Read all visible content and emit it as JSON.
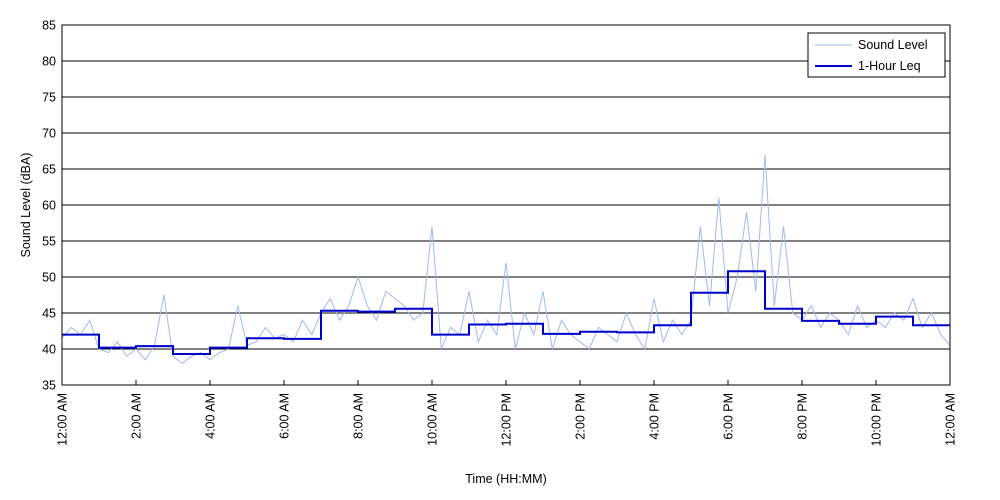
{
  "chart_data": {
    "type": "line",
    "title": "",
    "xlabel": "Time (HH:MM)",
    "ylabel": "Sound Level (dBA)",
    "xlim": [
      0,
      24
    ],
    "ylim": [
      35,
      85
    ],
    "y_ticks": [
      35,
      40,
      45,
      50,
      55,
      60,
      65,
      70,
      75,
      80,
      85
    ],
    "x_ticks": [
      {
        "x": 0,
        "label": "12:00 AM"
      },
      {
        "x": 2,
        "label": "2:00 AM"
      },
      {
        "x": 4,
        "label": "4:00 AM"
      },
      {
        "x": 6,
        "label": "6:00 AM"
      },
      {
        "x": 8,
        "label": "8:00 AM"
      },
      {
        "x": 10,
        "label": "10:00 AM"
      },
      {
        "x": 12,
        "label": "12:00 PM"
      },
      {
        "x": 14,
        "label": "2:00 PM"
      },
      {
        "x": 16,
        "label": "4:00 PM"
      },
      {
        "x": 18,
        "label": "6:00 PM"
      },
      {
        "x": 20,
        "label": "8:00 PM"
      },
      {
        "x": 22,
        "label": "10:00 PM"
      },
      {
        "x": 24,
        "label": "12:00 AM"
      }
    ],
    "grid": "horizontal",
    "legend_position": "top-right",
    "series": [
      {
        "name": "Sound Level",
        "color": "#9fb9ee",
        "x_hours": [
          0,
          0.25,
          0.5,
          0.75,
          1,
          1.25,
          1.5,
          1.75,
          2,
          2.25,
          2.5,
          2.75,
          3,
          3.25,
          3.5,
          3.75,
          4,
          4.25,
          4.5,
          4.75,
          5,
          5.25,
          5.5,
          5.75,
          6,
          6.25,
          6.5,
          6.75,
          7,
          7.25,
          7.5,
          7.75,
          8,
          8.25,
          8.5,
          8.75,
          9,
          9.25,
          9.5,
          9.75,
          10,
          10.25,
          10.5,
          10.75,
          11,
          11.25,
          11.5,
          11.75,
          12,
          12.25,
          12.5,
          12.75,
          13,
          13.25,
          13.5,
          13.75,
          14,
          14.25,
          14.5,
          14.75,
          15,
          15.25,
          15.5,
          15.75,
          16,
          16.25,
          16.5,
          16.75,
          17,
          17.25,
          17.5,
          17.75,
          18,
          18.25,
          18.5,
          18.75,
          19,
          19.25,
          19.5,
          19.75,
          20,
          20.25,
          20.5,
          20.75,
          21,
          21.25,
          21.5,
          21.75,
          22,
          22.25,
          22.5,
          22.75,
          23,
          23.25,
          23.5,
          23.75,
          24
        ],
        "values": [
          41.5,
          43,
          42,
          44,
          40,
          39.5,
          41,
          39,
          40,
          38.5,
          40.5,
          47.5,
          39,
          38,
          39,
          39.5,
          38.5,
          39.5,
          40,
          46,
          40.5,
          41,
          43,
          41.5,
          42,
          41,
          44,
          42,
          45,
          47,
          44,
          46,
          50,
          46,
          44,
          48,
          47,
          46,
          44,
          45,
          57,
          40,
          43,
          42,
          48,
          41,
          44,
          42,
          52,
          40,
          45,
          42,
          48,
          40,
          44,
          42,
          41,
          40,
          43,
          42,
          41,
          45,
          42,
          40,
          47,
          41,
          44,
          42,
          44,
          57,
          46,
          61,
          45,
          50,
          59,
          48,
          67,
          46,
          57,
          45,
          44,
          46,
          43,
          45,
          44,
          42,
          46,
          43,
          44,
          43,
          45,
          44,
          47,
          43,
          45,
          42,
          40.5
        ]
      },
      {
        "name": "1-Hour Leq",
        "color": "#0000cc",
        "step_hourly": true,
        "values": [
          42.0,
          40.2,
          40.4,
          39.3,
          40.2,
          41.5,
          41.4,
          45.3,
          45.2,
          45.6,
          42.0,
          43.4,
          43.5,
          42.1,
          42.4,
          42.3,
          43.3,
          47.8,
          50.8,
          45.6,
          43.9,
          43.5,
          44.5,
          43.3
        ]
      }
    ]
  }
}
